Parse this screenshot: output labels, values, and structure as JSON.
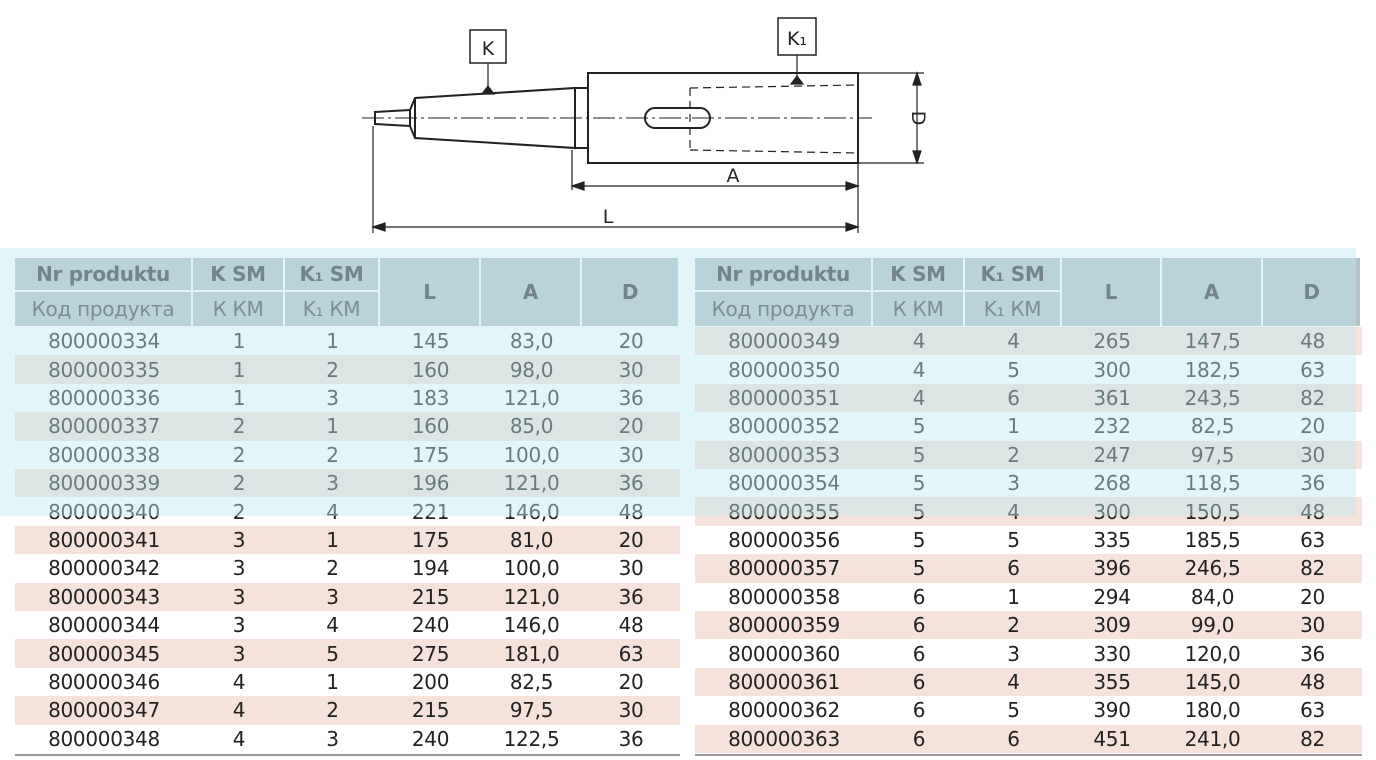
{
  "drawing": {
    "labels": {
      "k": "K",
      "k1": "K₁",
      "d": "D",
      "a": "A",
      "l": "L"
    }
  },
  "tables": [
    {
      "headers": {
        "top": [
          "Nr produktu",
          "K SM",
          "K₁ SM",
          "L",
          "A",
          "D"
        ],
        "bottom": [
          "Код продукта",
          "К КМ",
          "K₁ КМ"
        ]
      },
      "rows": [
        [
          "800000334",
          "1",
          "1",
          "145",
          "83,0",
          "20"
        ],
        [
          "800000335",
          "1",
          "2",
          "160",
          "98,0",
          "30"
        ],
        [
          "800000336",
          "1",
          "3",
          "183",
          "121,0",
          "36"
        ],
        [
          "800000337",
          "2",
          "1",
          "160",
          "85,0",
          "20"
        ],
        [
          "800000338",
          "2",
          "2",
          "175",
          "100,0",
          "30"
        ],
        [
          "800000339",
          "2",
          "3",
          "196",
          "121,0",
          "36"
        ],
        [
          "800000340",
          "2",
          "4",
          "221",
          "146,0",
          "48"
        ],
        [
          "800000341",
          "3",
          "1",
          "175",
          "81,0",
          "20"
        ],
        [
          "800000342",
          "3",
          "2",
          "194",
          "100,0",
          "30"
        ],
        [
          "800000343",
          "3",
          "3",
          "215",
          "121,0",
          "36"
        ],
        [
          "800000344",
          "3",
          "4",
          "240",
          "146,0",
          "48"
        ],
        [
          "800000345",
          "3",
          "5",
          "275",
          "181,0",
          "63"
        ],
        [
          "800000346",
          "4",
          "1",
          "200",
          "82,5",
          "20"
        ],
        [
          "800000347",
          "4",
          "2",
          "215",
          "97,5",
          "30"
        ],
        [
          "800000348",
          "4",
          "3",
          "240",
          "122,5",
          "36"
        ]
      ]
    },
    {
      "headers": {
        "top": [
          "Nr produktu",
          "K SM",
          "K₁ SM",
          "L",
          "A",
          "D"
        ],
        "bottom": [
          "Код продукта",
          "К КМ",
          "K₁ КМ"
        ]
      },
      "rows": [
        [
          "800000349",
          "4",
          "4",
          "265",
          "147,5",
          "48"
        ],
        [
          "800000350",
          "4",
          "5",
          "300",
          "182,5",
          "63"
        ],
        [
          "800000351",
          "4",
          "6",
          "361",
          "243,5",
          "82"
        ],
        [
          "800000352",
          "5",
          "1",
          "232",
          "82,5",
          "20"
        ],
        [
          "800000353",
          "5",
          "2",
          "247",
          "97,5",
          "30"
        ],
        [
          "800000354",
          "5",
          "3",
          "268",
          "118,5",
          "36"
        ],
        [
          "800000355",
          "5",
          "4",
          "300",
          "150,5",
          "48"
        ],
        [
          "800000356",
          "5",
          "5",
          "335",
          "185,5",
          "63"
        ],
        [
          "800000357",
          "5",
          "6",
          "396",
          "246,5",
          "82"
        ],
        [
          "800000358",
          "6",
          "1",
          "294",
          "84,0",
          "20"
        ],
        [
          "800000359",
          "6",
          "2",
          "309",
          "99,0",
          "30"
        ],
        [
          "800000360",
          "6",
          "3",
          "330",
          "120,0",
          "36"
        ],
        [
          "800000361",
          "6",
          "4",
          "355",
          "145,0",
          "48"
        ],
        [
          "800000362",
          "6",
          "5",
          "390",
          "180,0",
          "63"
        ],
        [
          "800000363",
          "6",
          "6",
          "451",
          "241,0",
          "82"
        ]
      ]
    }
  ]
}
